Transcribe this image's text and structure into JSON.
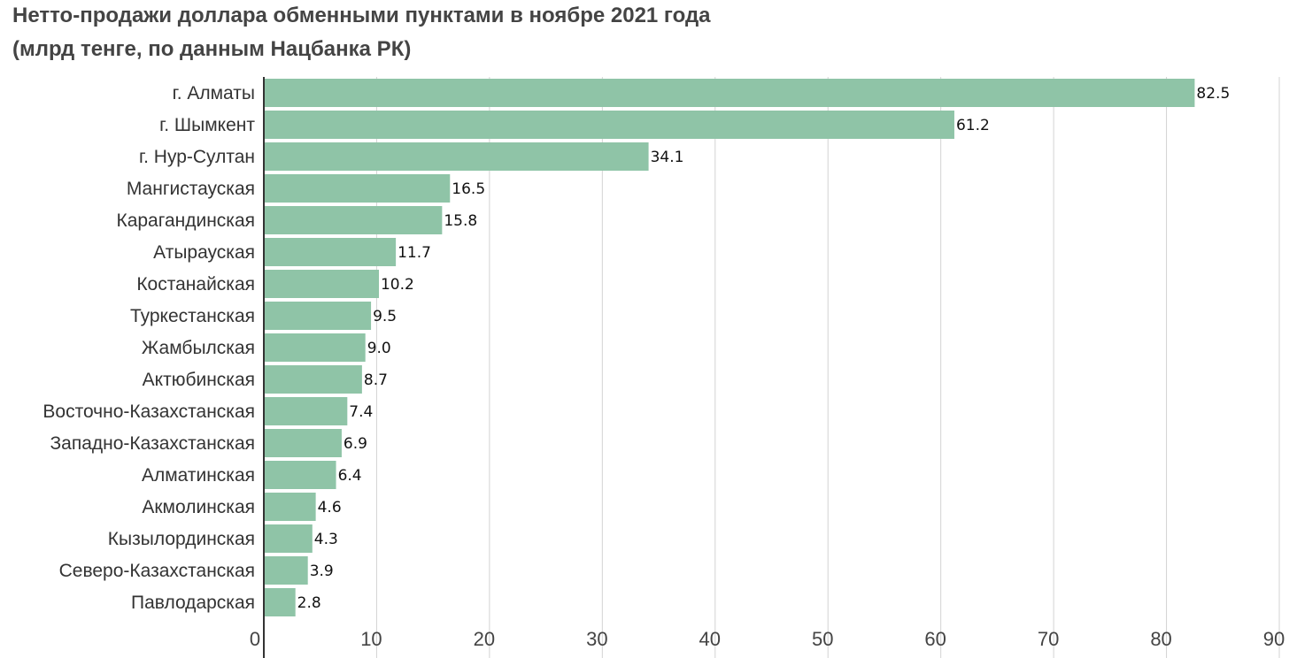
{
  "chart_data": {
    "type": "bar",
    "orientation": "horizontal",
    "title": "Нетто-продажи доллара обменными пунктами в ноябре 2021 года",
    "subtitle": "(млрд тенге, по данным Нацбанка РК)",
    "categories": [
      "г. Алматы",
      "г. Шымкент",
      "г. Нур-Султан",
      "Мангистауская",
      "Карагандинская",
      "Атырауская",
      "Костанайская",
      "Туркестанская",
      "Жамбылская",
      "Актюбинская",
      "Восточно-Казахстанская",
      "Западно-Казахстанская",
      "Алматинская",
      "Акмолинская",
      "Кызылординская",
      "Северо-Казахстанская",
      "Павлодарская"
    ],
    "values": [
      82.5,
      61.2,
      34.1,
      16.5,
      15.8,
      11.7,
      10.2,
      9.5,
      9.0,
      8.7,
      7.4,
      6.9,
      6.4,
      4.6,
      4.3,
      3.9,
      2.8
    ],
    "value_labels": [
      "82.5",
      "61.2",
      "34.1",
      "16.5",
      "15.8",
      "11.7",
      "10.2",
      "9.5",
      "9.0",
      "8.7",
      "7.4",
      "6.9",
      "6.4",
      "4.6",
      "4.3",
      "3.9",
      "2.8"
    ],
    "xlim": [
      0,
      90
    ],
    "xticks": [
      0,
      10,
      20,
      30,
      40,
      50,
      60,
      70,
      80,
      90
    ],
    "xticklabels": [
      "0",
      "10",
      "20",
      "30",
      "40",
      "50",
      "60",
      "70",
      "80",
      "90"
    ],
    "grid": "vertical",
    "legend": "none",
    "bar_color": "#8fc4a7",
    "grid_color": "#d3d3d3",
    "axis_color": "#333333"
  }
}
